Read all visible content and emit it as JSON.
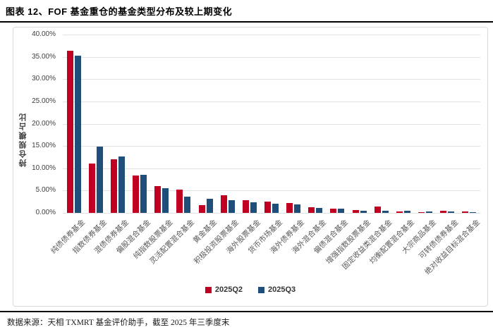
{
  "header": {
    "title": "图表 12、FOF 基金重仓的基金类型分布及较上期变化"
  },
  "footer": {
    "source": "数据来源：天相 TXMRT 基金评价助手，截至 2025 年三季度末"
  },
  "chart_data": {
    "type": "bar",
    "title": "",
    "xlabel": "",
    "ylabel": "持仓规模占比",
    "ylim": [
      0,
      40
    ],
    "ytick_step": 5,
    "ytick_suffix": "%",
    "grid": true,
    "legend_position": "bottom",
    "categories": [
      "纯债债券基金",
      "指数债券基金",
      "混债债券基金",
      "偏股混合基金",
      "纯指数股票基金",
      "灵活配置混合基金",
      "黄金基金",
      "积极投资股票基金",
      "海外股票基金",
      "货币市场基金",
      "海外债券基金",
      "海外混合基金",
      "偏债混合基金",
      "增强指数股票基金",
      "固定收益类混合基金",
      "均衡配置混合基金",
      "大宗商品基金",
      "可转债债券基金",
      "绝对收益目标混合基金"
    ],
    "series": [
      {
        "name": "2025Q2",
        "color": "#C00023",
        "values": [
          36.4,
          11.0,
          12.0,
          8.4,
          6.0,
          5.2,
          1.8,
          3.9,
          2.8,
          2.6,
          2.2,
          1.2,
          1.0,
          0.7,
          1.5,
          0.3,
          0.1,
          0.45,
          0.3
        ]
      },
      {
        "name": "2025Q3",
        "color": "#1F4E79",
        "values": [
          35.2,
          14.8,
          12.6,
          8.6,
          5.5,
          3.7,
          3.2,
          2.8,
          2.4,
          2.1,
          1.9,
          1.1,
          1.0,
          0.5,
          0.45,
          0.45,
          0.35,
          0.3,
          0.1
        ]
      }
    ]
  }
}
